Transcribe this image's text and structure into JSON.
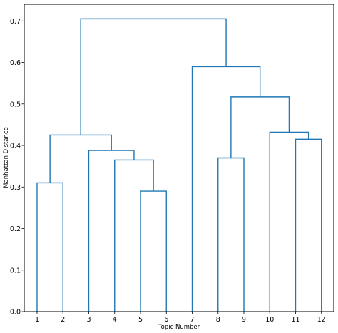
{
  "chart_data": {
    "type": "dendrogram",
    "title": "",
    "xlabel": "Topic Number",
    "ylabel": "Manhattan Distance",
    "leaf_order": [
      "1",
      "2",
      "3",
      "4",
      "5",
      "6",
      "7",
      "8",
      "9",
      "10",
      "11",
      "12"
    ],
    "ylim": [
      0,
      0.74
    ],
    "yticks": [
      0.0,
      0.1,
      0.2,
      0.3,
      0.4,
      0.5,
      0.6,
      0.7
    ],
    "ytick_labels": [
      "0.0",
      "0.1",
      "0.2",
      "0.3",
      "0.4",
      "0.5",
      "0.6",
      "0.7"
    ],
    "grid": false,
    "line_color": "#1f77b4",
    "merges": [
      {
        "left": "5",
        "right": "6",
        "height": 0.29
      },
      {
        "left": "1",
        "right": "2",
        "height": 0.31
      },
      {
        "left": "4",
        "right": "(5,6)",
        "height": 0.365
      },
      {
        "left": "8",
        "right": "9",
        "height": 0.37
      },
      {
        "left": "3",
        "right": "(4,5,6)",
        "height": 0.388
      },
      {
        "left": "11",
        "right": "12",
        "height": 0.415
      },
      {
        "left": "(1,2)",
        "right": "(3,4,5,6)",
        "height": 0.425
      },
      {
        "left": "10",
        "right": "(11,12)",
        "height": 0.432
      },
      {
        "left": "(8,9)",
        "right": "(10,11,12)",
        "height": 0.517
      },
      {
        "left": "7",
        "right": "(8,9,10,11,12)",
        "height": 0.59
      },
      {
        "left": "(1,2,3,4,5,6)",
        "right": "(7,8,9,10,11,12)",
        "height": 0.705
      }
    ]
  }
}
